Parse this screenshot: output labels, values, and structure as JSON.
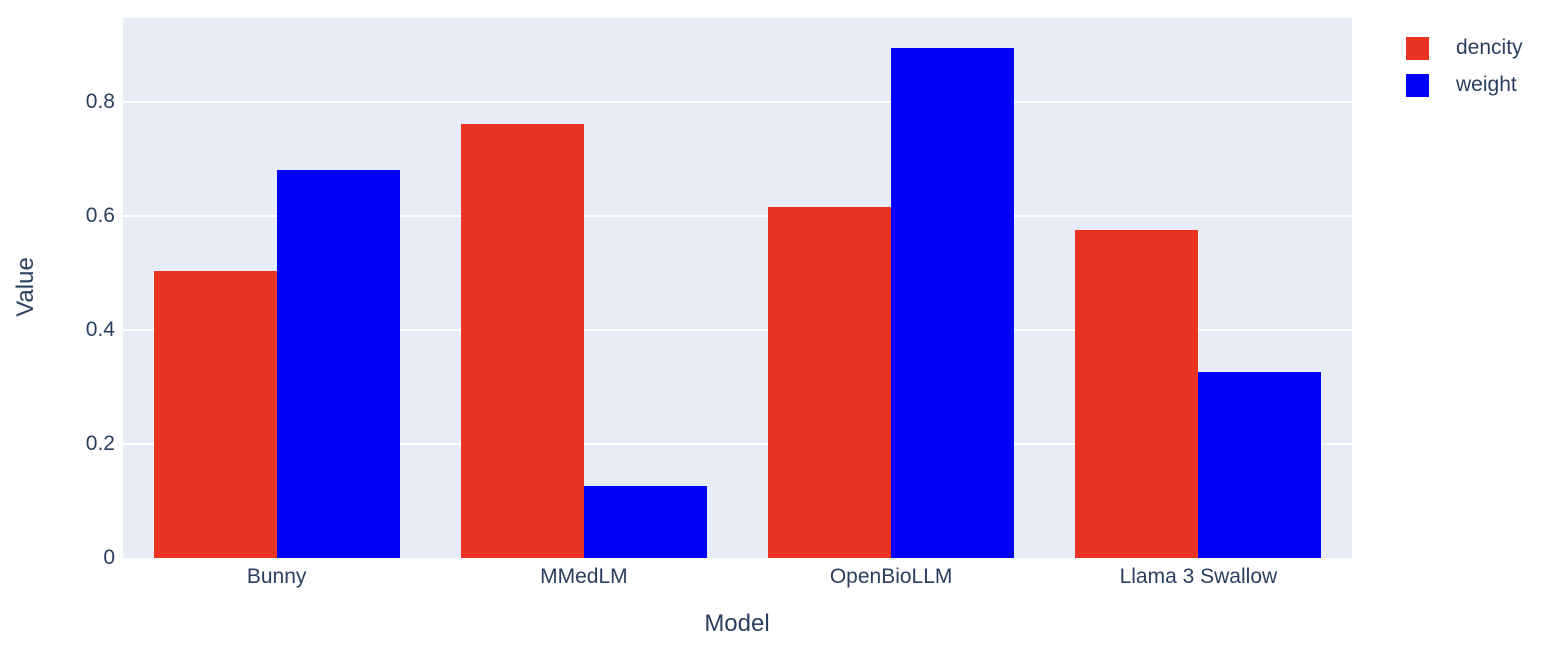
{
  "chart_data": {
    "type": "bar",
    "mode": "grouped",
    "title": "",
    "xlabel": "Model",
    "ylabel": "Value",
    "categories": [
      "Bunny",
      "MMedLM",
      "OpenBioLLM",
      "Llama 3 Swallow"
    ],
    "series": [
      {
        "name": "dencity",
        "color": "#EA3323",
        "values": [
          0.504,
          0.761,
          0.615,
          0.575
        ]
      },
      {
        "name": "weight",
        "color": "#0000F6",
        "values": [
          0.68,
          0.127,
          0.895,
          0.327
        ]
      }
    ],
    "ylim": [
      0,
      0.9474
    ],
    "yticks": [
      {
        "value": 0,
        "label": "0"
      },
      {
        "value": 0.2,
        "label": "0.2"
      },
      {
        "value": 0.4,
        "label": "0.4"
      },
      {
        "value": 0.6,
        "label": "0.6"
      },
      {
        "value": 0.8,
        "label": "0.8"
      }
    ],
    "grid": "horizontal-white",
    "legend_position": "top-right-outside",
    "plot_background": "#E7ECF6",
    "gridline_color": "#FFFFFF",
    "text_color": "#2A3F5F",
    "bargap": 0.2,
    "bargroupgap": 0
  }
}
